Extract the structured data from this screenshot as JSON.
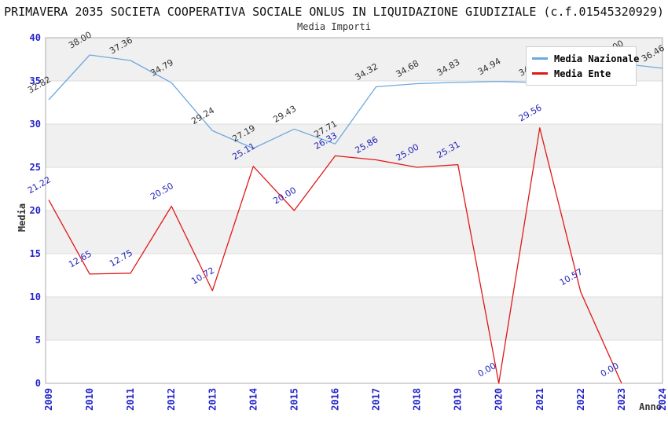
{
  "chart_data": {
    "type": "line",
    "title": "PRIMAVERA 2035 SOCIETA COOPERATIVA SOCIALE ONLUS IN LIQUIDAZIONE GIUDIZIALE (c.f.01545320929)",
    "subtitle": "Media Importi",
    "xlabel": "Anno",
    "ylabel": "Media",
    "ylim": [
      0,
      40
    ],
    "ytick_step": 5,
    "grid": true,
    "banded_background": true,
    "legend_position": "top-right",
    "categories": [
      "2009",
      "2010",
      "2011",
      "2012",
      "2013",
      "2014",
      "2015",
      "2016",
      "2017",
      "2018",
      "2019",
      "2020",
      "2021",
      "2022",
      "2023",
      "2024"
    ],
    "series": [
      {
        "name": "Media Nazionale",
        "color": "#6FA8E0",
        "label_color": "#333333",
        "values": [
          32.82,
          38.0,
          37.36,
          34.79,
          29.24,
          27.19,
          29.43,
          27.71,
          34.32,
          34.68,
          34.83,
          34.94,
          34.8,
          34.7,
          37.0,
          36.46
        ],
        "labels_hidden_by_legend_indices": [
          12,
          13,
          14
        ]
      },
      {
        "name": "Media Ente",
        "color": "#E01818",
        "label_color": "#2222BB",
        "values": [
          21.22,
          12.65,
          12.75,
          20.5,
          10.72,
          25.11,
          20.0,
          26.33,
          25.86,
          25.0,
          25.31,
          0.0,
          29.56,
          10.57,
          0.0
        ]
      }
    ],
    "colors": {
      "tick_label": "#2424CC",
      "band_gray": "#F0F0F0",
      "gridline": "#DCDCDC",
      "plot_border": "#ABABAB",
      "title_text": "#111111"
    }
  }
}
